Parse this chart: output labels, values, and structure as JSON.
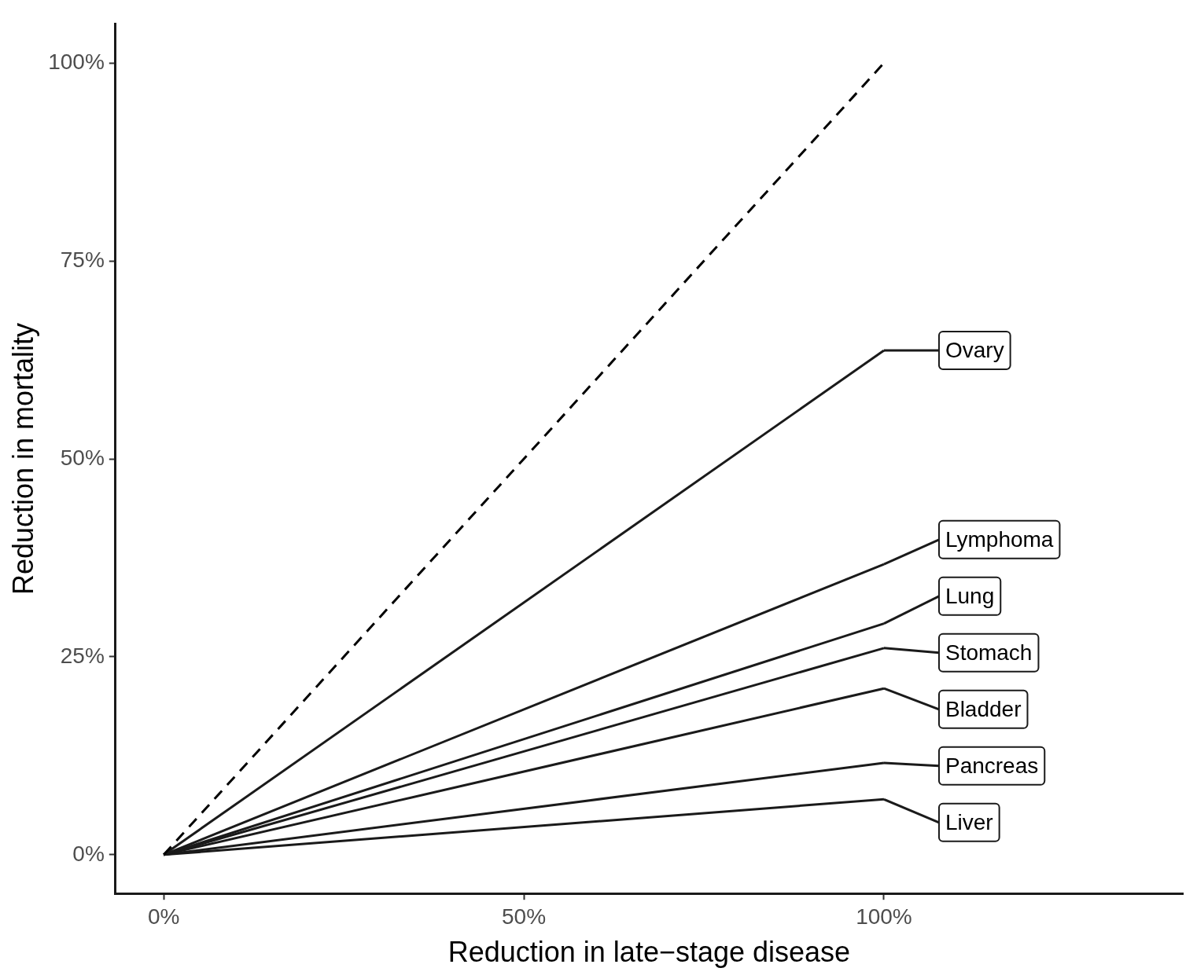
{
  "chart_data": {
    "type": "line",
    "xlabel": "Reduction in late−stage disease",
    "ylabel": "Reduction in mortality",
    "xlim": [
      -6.7,
      141.5
    ],
    "ylim": [
      -4.9,
      104.9
    ],
    "xticks": [
      {
        "value": 0,
        "label": "0%"
      },
      {
        "value": 50,
        "label": "50%"
      },
      {
        "value": 100,
        "label": "100%"
      }
    ],
    "yticks": [
      {
        "value": 0,
        "label": "0%"
      },
      {
        "value": 25,
        "label": "25%"
      },
      {
        "value": 50,
        "label": "50%"
      },
      {
        "value": 75,
        "label": "75%"
      },
      {
        "value": 100,
        "label": "100%"
      }
    ],
    "grid": false,
    "legend": "right",
    "marker": "none",
    "line_style": "solid",
    "x": [
      0,
      100
    ],
    "series": [
      {
        "color": "#000000",
        "values": [
          0,
          100
        ],
        "line_style": "dashed"
      },
      {
        "name": "Ovary",
        "color": "#1a1a1a",
        "values": [
          0,
          63.7
        ]
      },
      {
        "name": "Lymphoma",
        "color": "#1a1a1a",
        "values": [
          0,
          36.7
        ]
      },
      {
        "name": "Lung",
        "color": "#1a1a1a",
        "values": [
          0,
          29.2
        ]
      },
      {
        "name": "Stomach",
        "color": "#1a1a1a",
        "values": [
          0,
          26.1
        ]
      },
      {
        "name": "Bladder",
        "color": "#1a1a1a",
        "values": [
          0,
          21.0
        ]
      },
      {
        "name": "Pancreas",
        "color": "#1a1a1a",
        "values": [
          0,
          11.6
        ]
      },
      {
        "name": "Liver",
        "color": "#1a1a1a",
        "values": [
          0,
          7.0
        ]
      }
    ]
  }
}
